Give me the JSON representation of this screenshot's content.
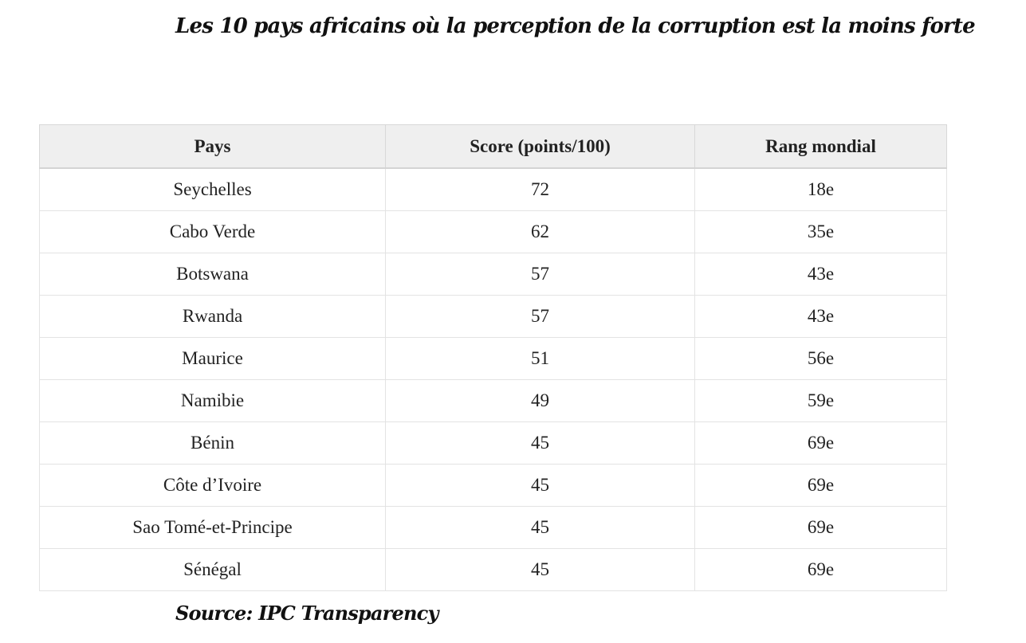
{
  "title": "Les 10 pays africains où la perception de la corruption est la moins forte",
  "table": {
    "headers": [
      "Pays",
      "Score (points/100)",
      "Rang mondial"
    ],
    "rows": [
      [
        "Seychelles",
        "72",
        "18e"
      ],
      [
        "Cabo Verde",
        "62",
        "35e"
      ],
      [
        "Botswana",
        "57",
        "43e"
      ],
      [
        "Rwanda",
        "57",
        "43e"
      ],
      [
        "Maurice",
        "51",
        "56e"
      ],
      [
        "Namibie",
        "49",
        "59e"
      ],
      [
        "Bénin",
        "45",
        "69e"
      ],
      [
        "Côte d’Ivoire",
        "45",
        "69e"
      ],
      [
        "Sao Tomé-et-Principe",
        "45",
        "69e"
      ],
      [
        "Sénégal",
        "45",
        "69e"
      ]
    ]
  },
  "source": "Source: IPC Transparency"
}
